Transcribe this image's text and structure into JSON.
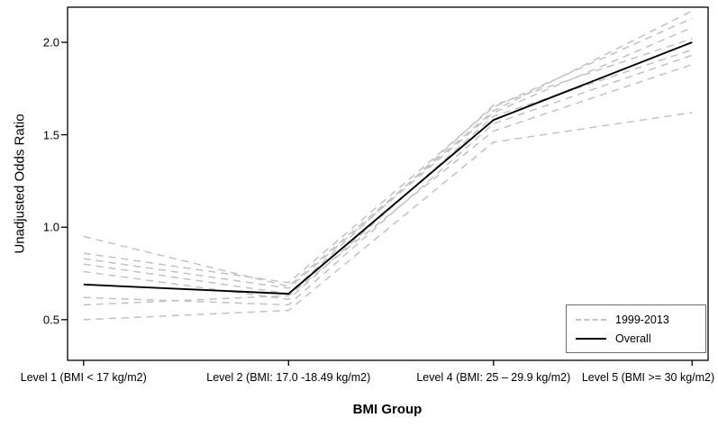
{
  "chart_data": {
    "type": "line",
    "title": "",
    "xlabel": "BMI Group",
    "ylabel": "Unadjusted Odds Ratio",
    "categories": [
      "Level 1 (BMI < 17 kg/m2)",
      "Level 2 (BMI: 17.0 -18.49 kg/m2)",
      "Level 4 (BMI: 25 – 29.9 kg/m2)",
      "Level 5 (BMI >= 30 kg/m2)"
    ],
    "yticks": [
      0.5,
      1.0,
      1.5,
      2.0
    ],
    "ytick_labels": [
      "0.5",
      "1.0",
      "1.5",
      "2.0"
    ],
    "ylim": [
      0.28,
      2.19
    ],
    "grid": false,
    "series": [
      {
        "name": "1999-2013",
        "values": [
          0.95,
          0.68,
          1.63,
          2.17
        ],
        "color": "#c2c2c2",
        "dashed": true
      },
      {
        "name": "1999-2013",
        "values": [
          0.86,
          0.7,
          1.65,
          2.13
        ],
        "color": "#c2c2c2",
        "dashed": true
      },
      {
        "name": "1999-2013",
        "values": [
          0.83,
          0.67,
          1.62,
          2.08
        ],
        "color": "#c2c2c2",
        "dashed": true
      },
      {
        "name": "1999-2013",
        "values": [
          0.8,
          0.64,
          1.66,
          2.02
        ],
        "color": "#c2c2c2",
        "dashed": true
      },
      {
        "name": "1999-2013",
        "values": [
          0.76,
          0.61,
          1.6,
          1.96
        ],
        "color": "#c2c2c2",
        "dashed": true
      },
      {
        "name": "1999-2013",
        "values": [
          0.62,
          0.58,
          1.56,
          1.93
        ],
        "color": "#c2c2c2",
        "dashed": true
      },
      {
        "name": "1999-2013",
        "values": [
          0.58,
          0.63,
          1.52,
          1.88
        ],
        "color": "#c2c2c2",
        "dashed": true
      },
      {
        "name": "1999-2013",
        "values": [
          0.5,
          0.55,
          1.46,
          1.62
        ],
        "color": "#c2c2c2",
        "dashed": true
      },
      {
        "name": "Overall",
        "values": [
          0.69,
          0.64,
          1.58,
          2.0
        ],
        "color": "#000000",
        "dashed": false
      }
    ],
    "legend": {
      "position": "bottom-right",
      "entries": [
        {
          "label": "1999-2013",
          "style": "dashed-gray"
        },
        {
          "label": "Overall",
          "style": "solid-black"
        }
      ]
    },
    "colors": {
      "year_lines": "#c2c2c2",
      "overall_line": "#000000",
      "axis": "#000000"
    }
  }
}
